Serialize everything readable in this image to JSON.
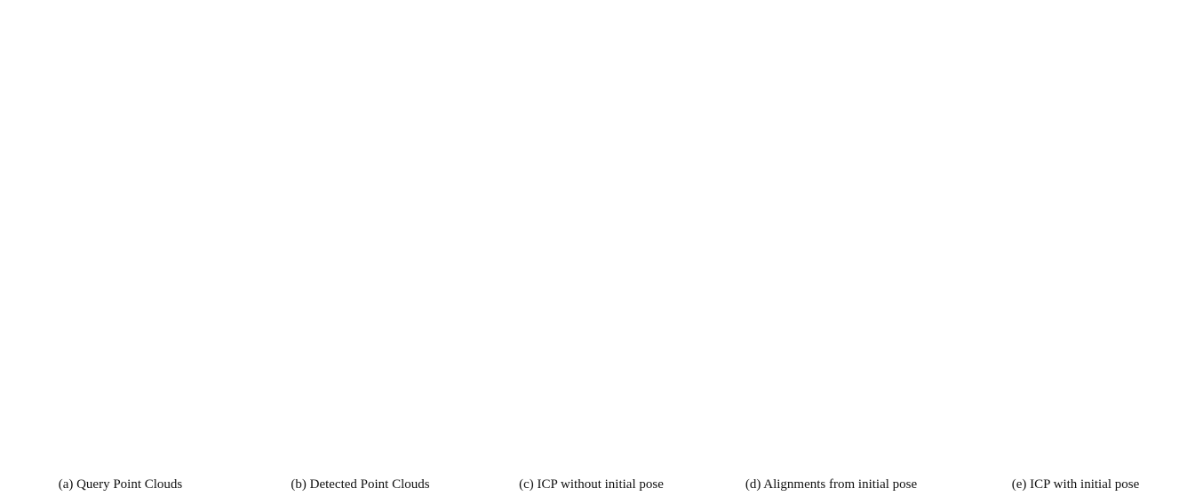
{
  "captions": [
    "(a) Query Point Clouds",
    "(b) Detected Point Clouds",
    "(c) ICP without initial pose",
    "(d) Alignments from initial pose",
    "(e) ICP with initial pose"
  ]
}
